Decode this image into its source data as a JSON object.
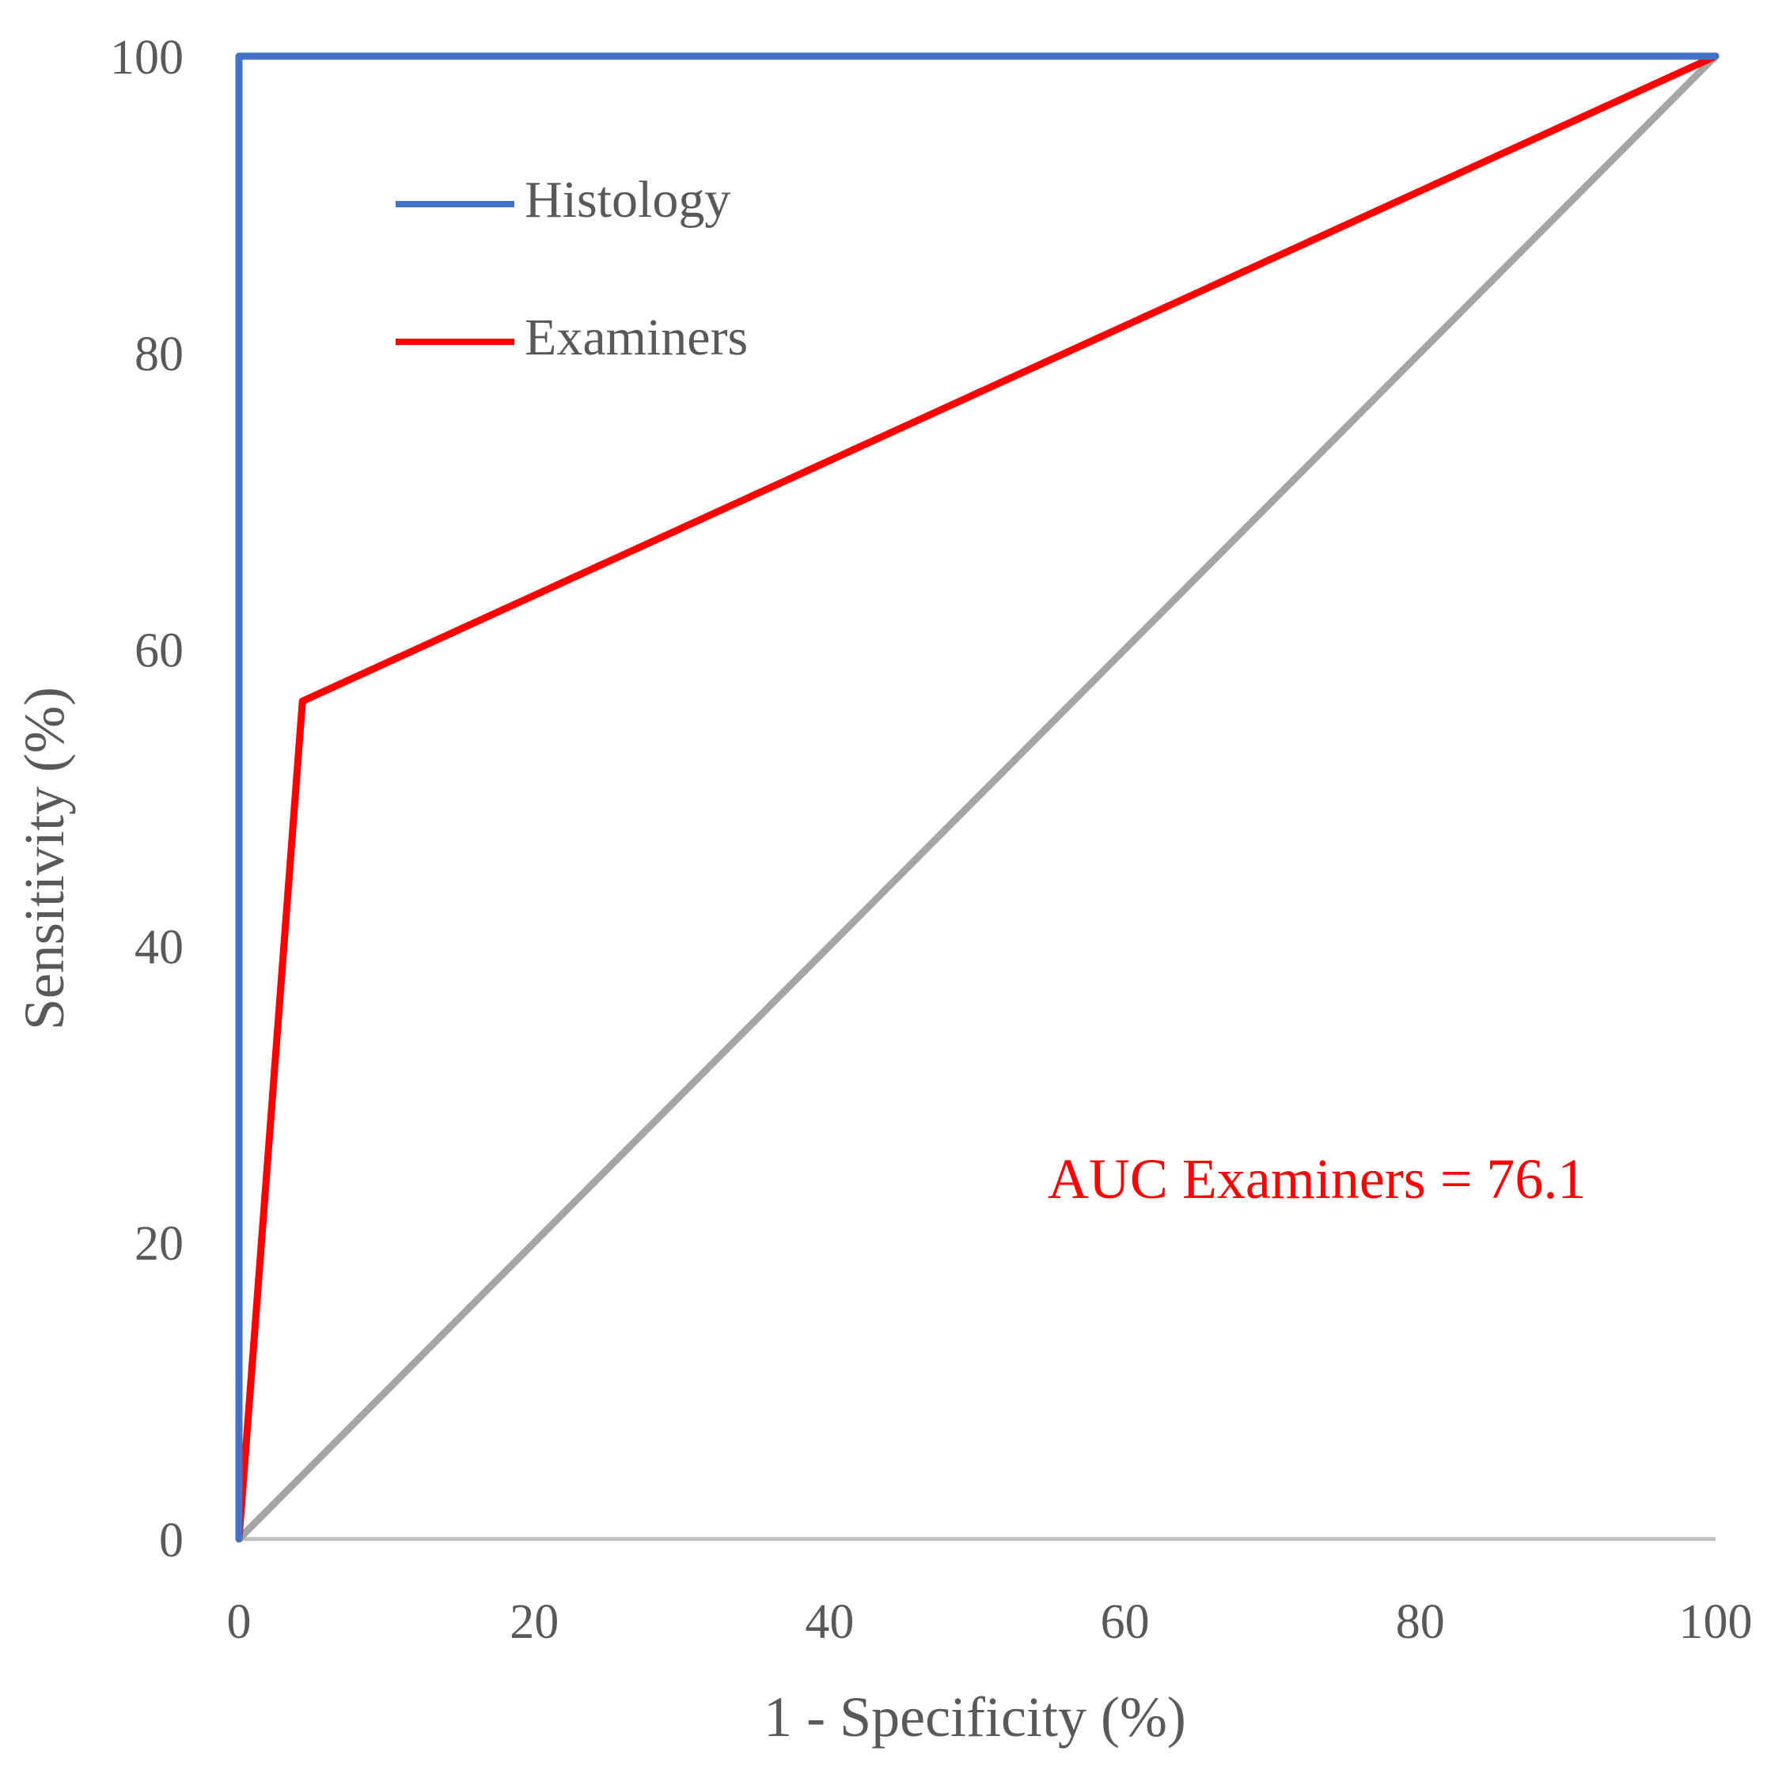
{
  "chart_data": {
    "type": "line",
    "title": "",
    "xlabel": "1 - Specificity (%)",
    "ylabel": "Sensitivity (%)",
    "xlim": [
      0,
      100
    ],
    "ylim": [
      0,
      100
    ],
    "xticks": [
      "0",
      "20",
      "40",
      "60",
      "80",
      "100"
    ],
    "yticks": [
      "0",
      "20",
      "40",
      "60",
      "80",
      "100"
    ],
    "grid": false,
    "legend_position": "top-left",
    "series": [
      {
        "name": "Histology",
        "color": "#4472C4",
        "x": [
          0,
          0,
          100
        ],
        "y": [
          0,
          100,
          100
        ]
      },
      {
        "name": "Examiners",
        "color": "#FF0000",
        "x": [
          0,
          4.3,
          100
        ],
        "y": [
          0,
          56.5,
          100
        ]
      },
      {
        "color": "#A5A5A5",
        "x": [
          0,
          100
        ],
        "y": [
          0,
          100
        ]
      }
    ],
    "axis_color": "#BFBFBF",
    "text_color": "#595959",
    "annotation": {
      "text": "AUC Examiners = 76.1",
      "color": "#FF0000",
      "x": 73,
      "y": 23
    }
  }
}
